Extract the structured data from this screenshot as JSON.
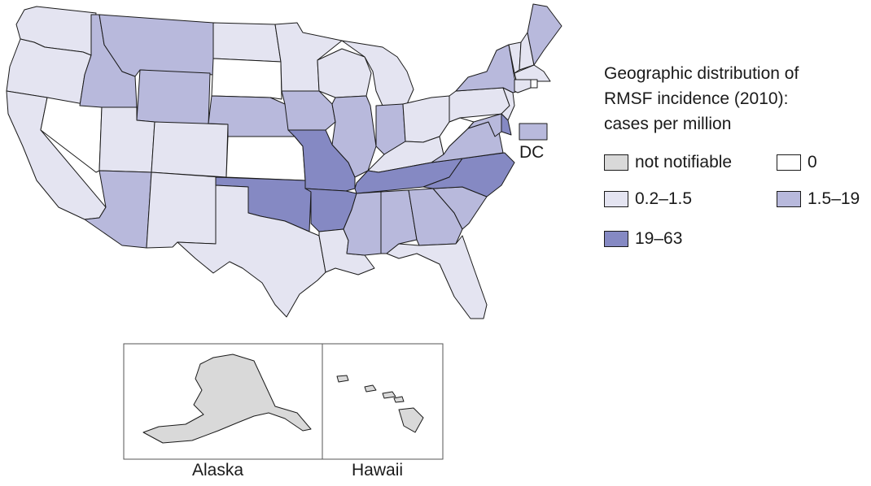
{
  "legend": {
    "title_lines": [
      "Geographic distribution of",
      "RMSF incidence (2010):",
      "cases per million"
    ],
    "items": [
      {
        "label": "not notifiable",
        "color": "#d9d9d9"
      },
      {
        "label": "0",
        "color": "#ffffff"
      },
      {
        "label": "0.2–1.5",
        "color": "#e4e4f1"
      },
      {
        "label": "1.5–19",
        "color": "#b8b9dc"
      },
      {
        "label": "19–63",
        "color": "#8589c3"
      }
    ]
  },
  "dc": {
    "label": "DC",
    "category": "1.5–19"
  },
  "insets": {
    "alaska": {
      "label": "Alaska",
      "category": "not notifiable"
    },
    "hawaii": {
      "label": "Hawaii",
      "category": "not notifiable"
    }
  },
  "states": {
    "WA": "0.2–1.5",
    "OR": "0.2–1.5",
    "CA": "0.2–1.5",
    "NV": "0",
    "ID": "1.5–19",
    "MT": "1.5–19",
    "WY": "1.5–19",
    "UT": "0.2–1.5",
    "CO": "0.2–1.5",
    "AZ": "1.5–19",
    "NM": "0.2–1.5",
    "ND": "0.2–1.5",
    "SD": "0",
    "NE": "1.5–19",
    "KS": "0",
    "OK": "19–63",
    "TX": "0.2–1.5",
    "MN": "0.2–1.5",
    "IA": "1.5–19",
    "MO": "19–63",
    "AR": "19–63",
    "LA": "0.2–1.5",
    "WI": "0.2–1.5",
    "IL": "1.5–19",
    "MI": "0.2–1.5",
    "IN": "1.5–19",
    "OH": "0.2–1.5",
    "KY": "0.2–1.5",
    "TN": "19–63",
    "MS": "1.5–19",
    "AL": "1.5–19",
    "GA": "1.5–19",
    "FL": "0.2–1.5",
    "SC": "1.5–19",
    "NC": "19–63",
    "VA": "1.5–19",
    "WV": "0",
    "PA": "0.2–1.5",
    "NY": "1.5–19",
    "VT": "0.2–1.5",
    "NH": "0.2–1.5",
    "ME": "1.5–19",
    "MA": "0.2–1.5",
    "RI": "0",
    "CT": "0.2–1.5",
    "NJ": "0.2–1.5",
    "DE": "19–63",
    "MD": "1.5–19"
  }
}
